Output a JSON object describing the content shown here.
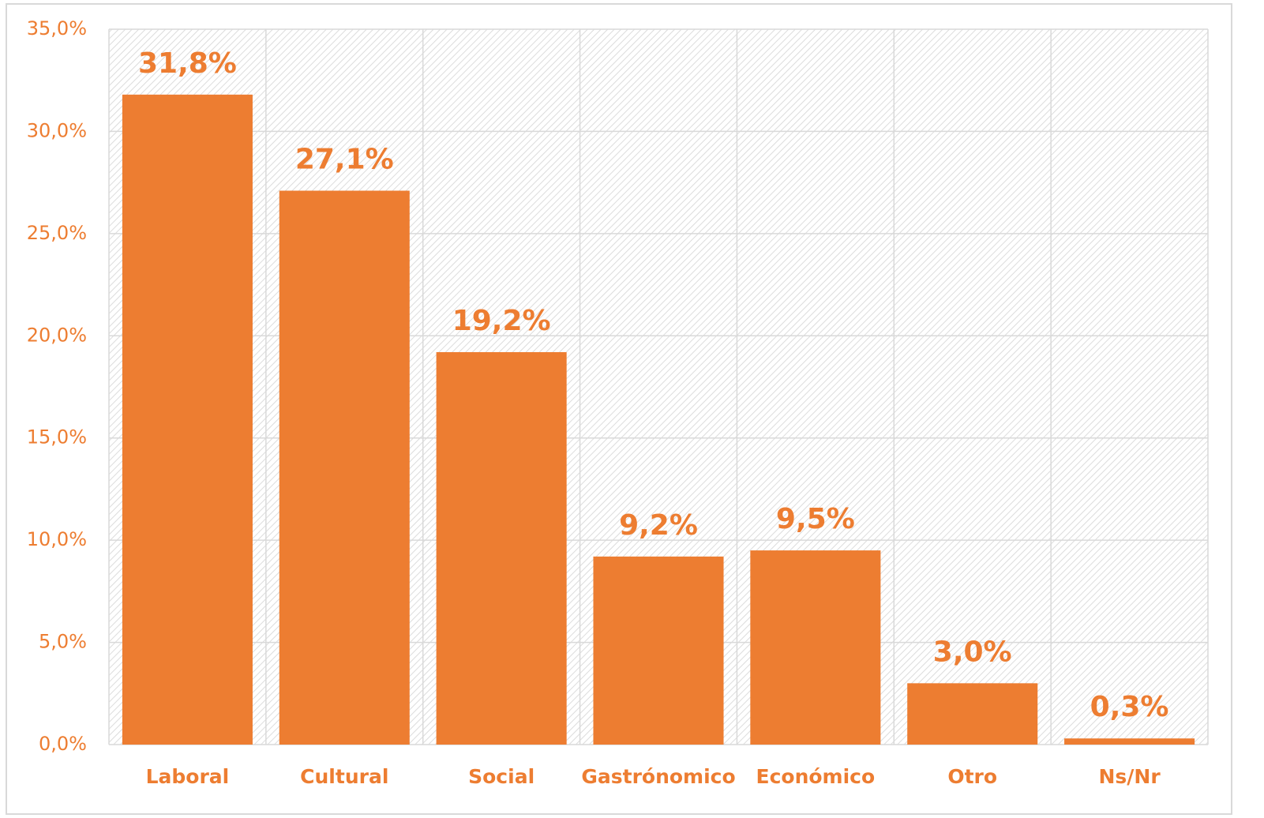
{
  "chart_data": {
    "type": "bar",
    "categories": [
      "Laboral",
      "Cultural",
      "Social",
      "Gastrónomico",
      "Económico",
      "Otro",
      "Ns/Nr"
    ],
    "values": [
      31.8,
      27.1,
      19.2,
      9.2,
      9.5,
      3.0,
      0.3
    ],
    "value_labels": [
      "31,8%",
      "27,1%",
      "19,2%",
      "9,2%",
      "9,5%",
      "3,0%",
      "0,3%"
    ],
    "color": "#ED7D31",
    "ylim": [
      0,
      35
    ],
    "yticks": [
      {
        "value": 0,
        "label": "0,0%"
      },
      {
        "value": 5,
        "label": "5,0%"
      },
      {
        "value": 10,
        "label": "10,0%"
      },
      {
        "value": 15,
        "label": "15,0%"
      },
      {
        "value": 20,
        "label": "20,0%"
      },
      {
        "value": 25,
        "label": "25,0%"
      },
      {
        "value": 30,
        "label": "30,0%"
      },
      {
        "value": 35,
        "label": "35,0%"
      }
    ],
    "grid": true
  }
}
